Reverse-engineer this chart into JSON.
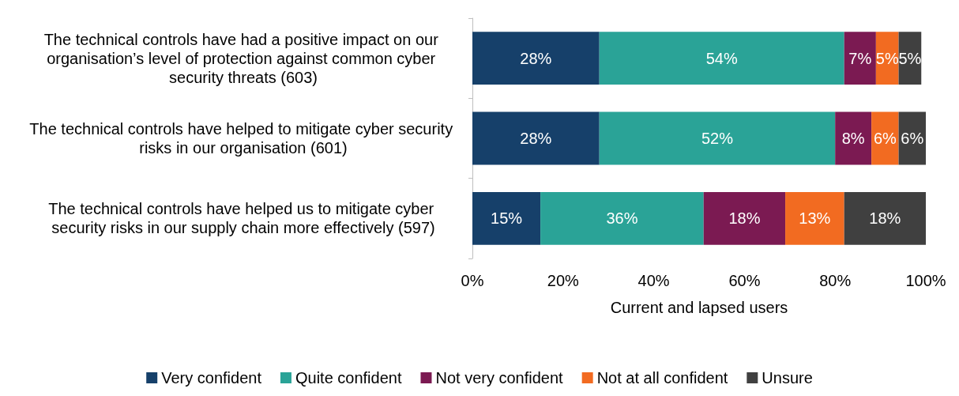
{
  "chart_data": {
    "type": "bar",
    "orientation": "horizontal",
    "stacked": true,
    "xlabel": "Current and lapsed users",
    "categories": [
      "The technical controls have had a positive impact on our organisation’s level of protection against common cyber security threats (603)",
      "The technical controls have helped to mitigate cyber security risks in our organisation (601)",
      "The technical controls have helped us to mitigate cyber security risks in our supply chain more effectively (597)"
    ],
    "series": [
      {
        "name": "Very confident",
        "color": "#16406a",
        "values": [
          28,
          28,
          15
        ],
        "value_labels": [
          "28%",
          "28%",
          "15%"
        ]
      },
      {
        "name": "Quite confident",
        "color": "#2aa397",
        "values": [
          54,
          52,
          36
        ],
        "value_labels": [
          "54%",
          "52%",
          "36%"
        ]
      },
      {
        "name": "Not very confident",
        "color": "#7b1a52",
        "values": [
          7,
          8,
          18
        ],
        "value_labels": [
          "7%",
          "8%",
          "18%"
        ]
      },
      {
        "name": "Not at all confident",
        "color": "#f26b21",
        "values": [
          5,
          6,
          13
        ],
        "value_labels": [
          "5%",
          "6%",
          "13%"
        ]
      },
      {
        "name": "Unsure",
        "color": "#404040",
        "values": [
          5,
          6,
          18
        ],
        "value_labels": [
          "5%",
          "6%",
          "18%"
        ]
      }
    ],
    "xlim": [
      0,
      100
    ],
    "xticks": [
      {
        "value": 0,
        "label": "0%"
      },
      {
        "value": 20,
        "label": "20%"
      },
      {
        "value": 40,
        "label": "40%"
      },
      {
        "value": 60,
        "label": "60%"
      },
      {
        "value": 80,
        "label": "80%"
      },
      {
        "value": 100,
        "label": "100%"
      }
    ],
    "grid": false,
    "legend": "bottom"
  }
}
